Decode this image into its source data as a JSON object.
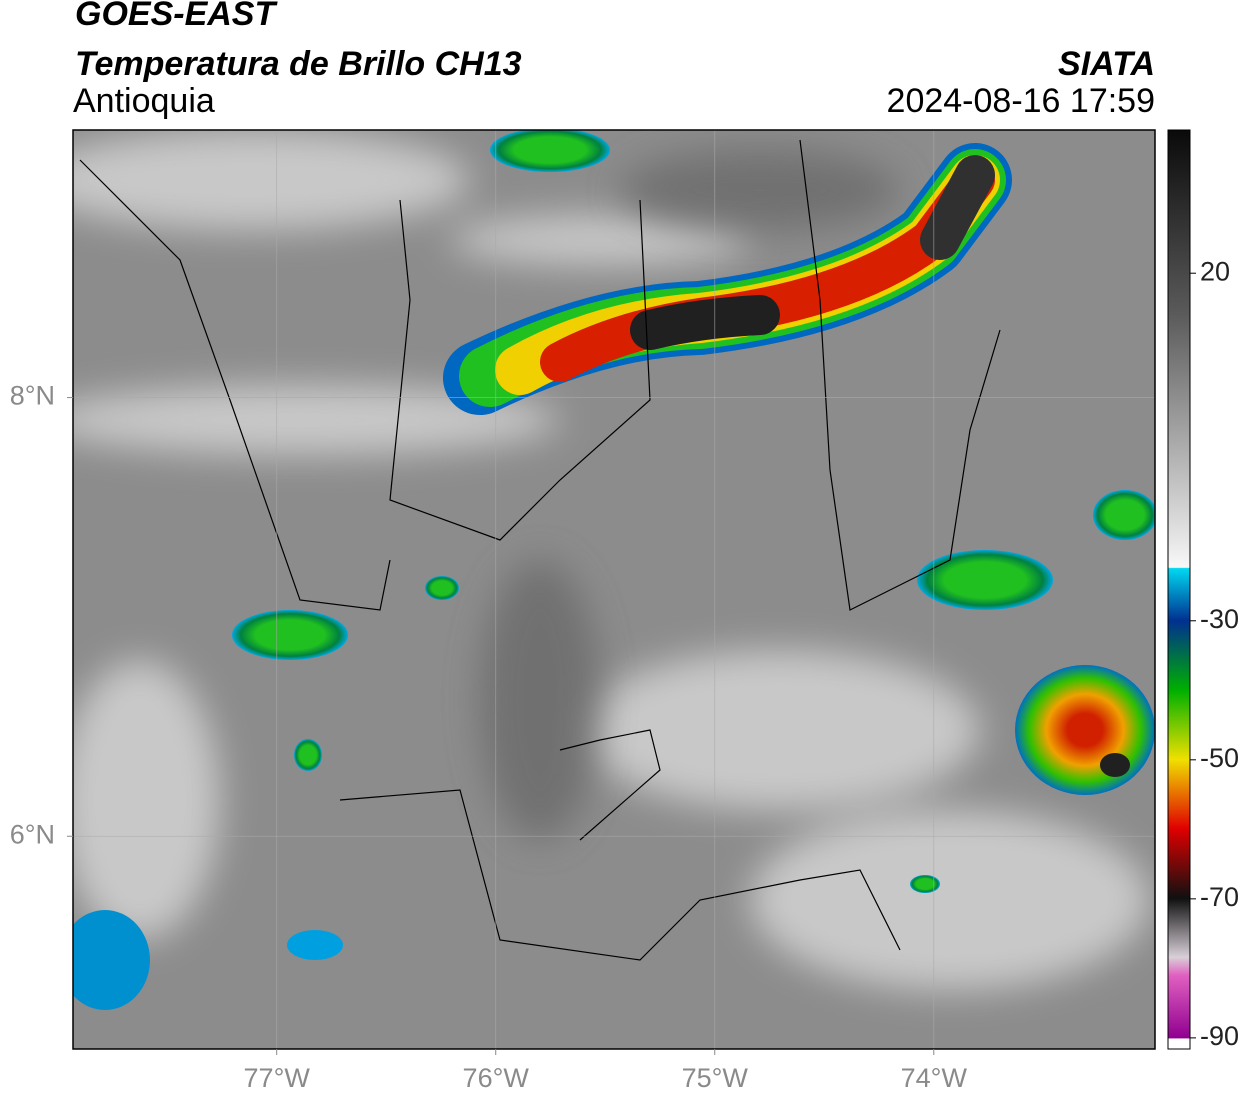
{
  "header": {
    "title": "GOES-EAST",
    "subtitle": "Temperatura de Brillo CH13",
    "region": "Antioquia",
    "source": "SIATA",
    "datetime": "2024-08-16 17:59"
  },
  "map": {
    "xlim": [
      -77.93,
      -72.99
    ],
    "ylim": [
      5.03,
      9.22
    ],
    "xticks": [
      {
        "value": -77,
        "label": "77°W"
      },
      {
        "value": -76,
        "label": "76°W"
      },
      {
        "value": -75,
        "label": "75°W"
      },
      {
        "value": -74,
        "label": "74°W"
      }
    ],
    "yticks": [
      {
        "value": 6,
        "label": "6°N"
      },
      {
        "value": 8,
        "label": "8°N"
      }
    ],
    "grid": true
  },
  "colorbar": {
    "lim": [
      -91.6,
      40.6
    ],
    "ticks": [
      20,
      -30,
      -50,
      -70,
      -90
    ]
  }
}
